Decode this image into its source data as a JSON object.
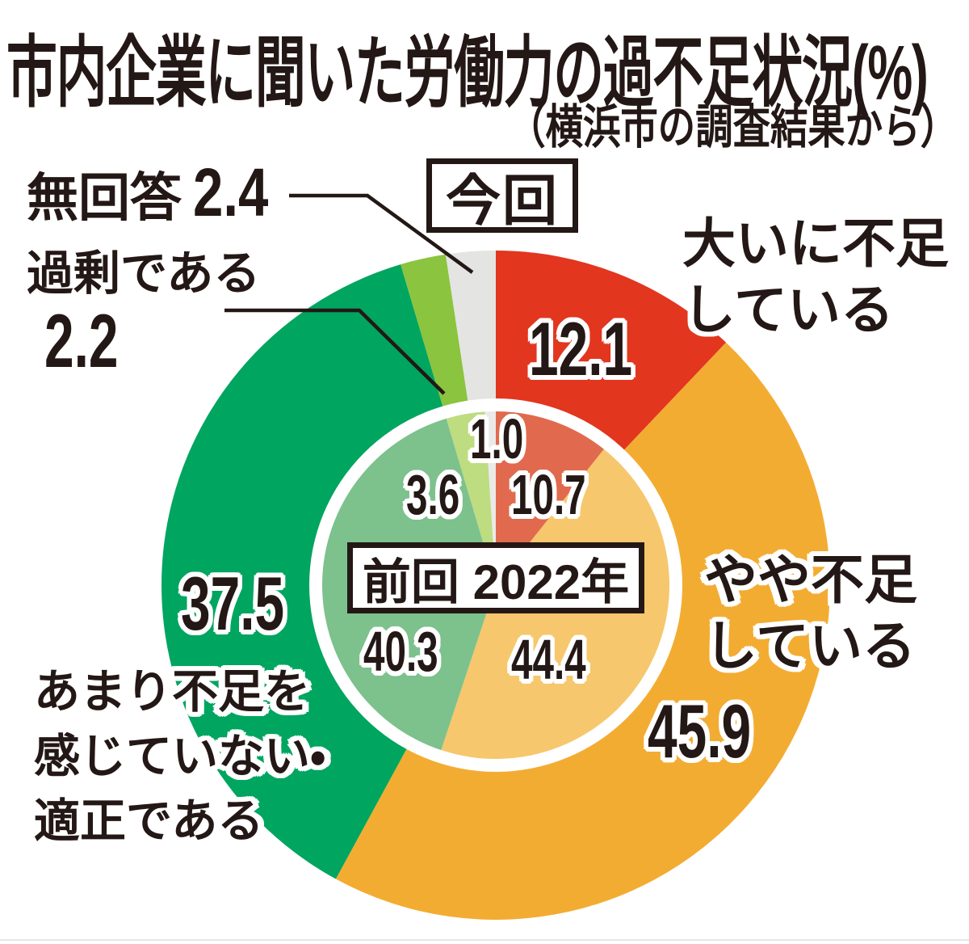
{
  "title": "市内企業に聞いた労働力の過不足状況(%)",
  "subtitle": "（横浜市の調査結果から）",
  "ring_tags": {
    "current": "今回",
    "previous": "前回 2022年"
  },
  "callouts": {
    "no_answer": {
      "label": "無回答",
      "value": "2.4"
    },
    "surplus": {
      "label": "過剰である",
      "value": "2.2"
    }
  },
  "labels": {
    "severe": {
      "lines": [
        "大いに不足",
        "している"
      ],
      "value": "12.1"
    },
    "somewhat": {
      "lines": [
        "やや不足",
        "している"
      ],
      "value": "45.9"
    },
    "adequate": {
      "lines": [
        "あまり不足を",
        "感じていない・",
        "適正である"
      ],
      "value": "37.5"
    }
  },
  "inner_values": {
    "severe": "10.7",
    "somewhat": "44.4",
    "adequate": "40.3",
    "surplus": "3.6",
    "no_answer": "1.0"
  },
  "chart_data": {
    "type": "pie",
    "unit": "%",
    "title": "市内企業に聞いた労働力の過不足状況(%)",
    "source_note": "横浜市の調査結果から",
    "categories": [
      "大いに不足している",
      "やや不足している",
      "あまり不足を感じていない・適正である",
      "過剰である",
      "無回答"
    ],
    "series": [
      {
        "name": "今回",
        "ring": "outer",
        "values": [
          12.1,
          45.9,
          37.5,
          2.2,
          2.4
        ]
      },
      {
        "name": "前回 2022年",
        "ring": "inner",
        "values": [
          10.7,
          44.4,
          40.3,
          3.6,
          1.0
        ]
      }
    ],
    "colors": {
      "outer": [
        "#e2361f",
        "#f3ac32",
        "#00a55f",
        "#8bc43e",
        "#e4e4e2"
      ],
      "inner": [
        "#e16a4e",
        "#f6c76c",
        "#7dc18d",
        "#bedc80",
        "#eaeae8"
      ]
    },
    "start_angle_deg": 0,
    "direction": "clockwise",
    "legend_position": "boxes-on-chart",
    "grid": false
  },
  "ink_color": "#231815"
}
